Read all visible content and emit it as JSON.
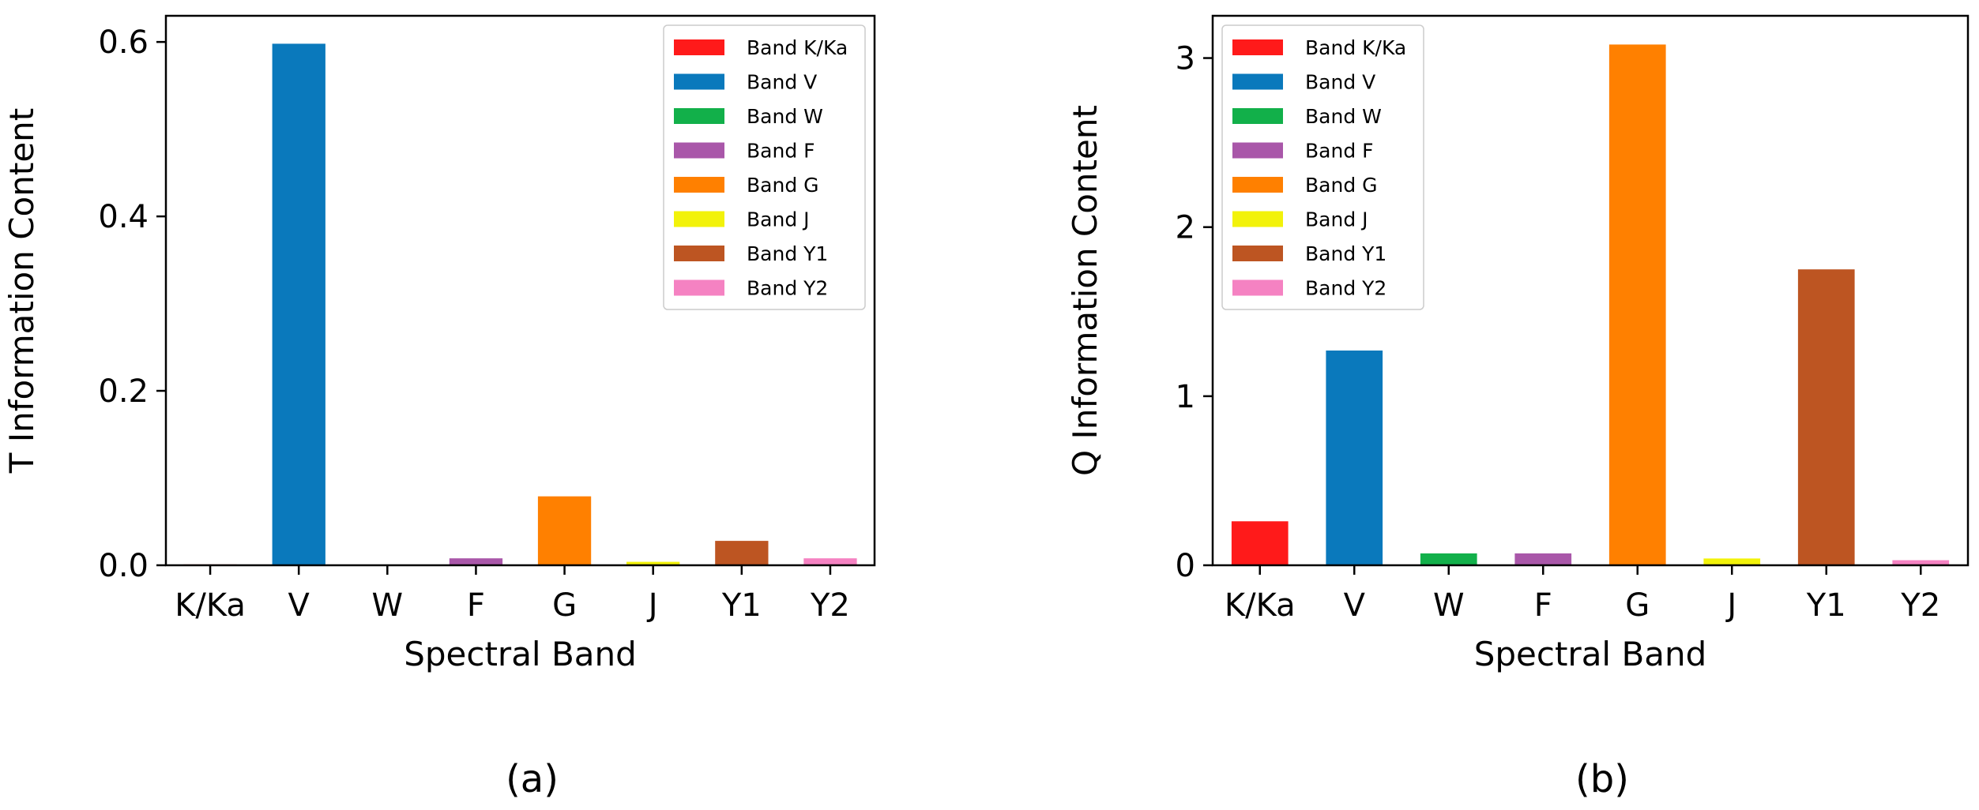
{
  "chart_data": [
    {
      "type": "bar",
      "panel_label": "(a)",
      "xlabel": "Spectral Band",
      "ylabel": "T Information Content",
      "ylim": [
        0,
        0.63
      ],
      "yticks": [
        0.0,
        0.2,
        0.4,
        0.6
      ],
      "ytick_labels": [
        "0.0",
        "0.2",
        "0.4",
        "0.6"
      ],
      "categories": [
        "K/Ka",
        "V",
        "W",
        "F",
        "G",
        "J",
        "Y1",
        "Y2"
      ],
      "values": [
        0.001,
        0.598,
        0.0,
        0.008,
        0.079,
        0.004,
        0.028,
        0.008
      ],
      "legend_position": "top-right",
      "legend": [
        "Band K/Ka",
        "Band V",
        "Band W",
        "Band F",
        "Band G",
        "Band J",
        "Band Y1",
        "Band Y2"
      ]
    },
    {
      "type": "bar",
      "panel_label": "(b)",
      "xlabel": "Spectral Band",
      "ylabel": "Q Information Content",
      "ylim": [
        0,
        3.25
      ],
      "yticks": [
        0,
        1,
        2,
        3
      ],
      "ytick_labels": [
        "0",
        "1",
        "2",
        "3"
      ],
      "categories": [
        "K/Ka",
        "V",
        "W",
        "F",
        "G",
        "J",
        "Y1",
        "Y2"
      ],
      "values": [
        0.26,
        1.27,
        0.07,
        0.07,
        3.08,
        0.04,
        1.75,
        0.03
      ],
      "legend_position": "top-left",
      "legend": [
        "Band K/Ka",
        "Band V",
        "Band W",
        "Band F",
        "Band G",
        "Band J",
        "Band Y1",
        "Band Y2"
      ]
    }
  ],
  "colors": [
    "#ff1a1a",
    "#0a79bc",
    "#12b04a",
    "#a957a9",
    "#ff8000",
    "#f2f20a",
    "#bd5522",
    "#f582c2"
  ]
}
